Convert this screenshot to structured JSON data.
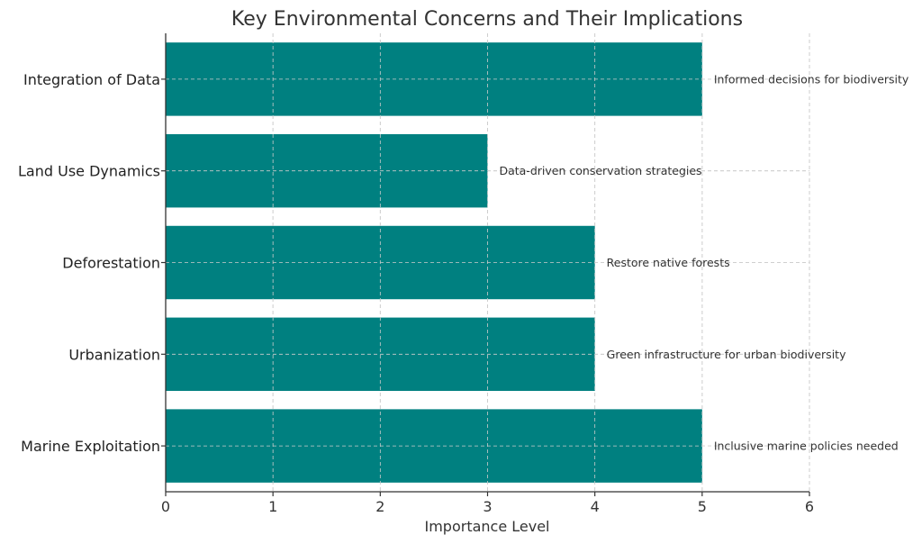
{
  "chart_data": {
    "type": "bar",
    "orientation": "horizontal",
    "title": "Key Environmental Concerns and Their Implications",
    "xlabel": "Importance Level",
    "ylabel": "",
    "xlim": [
      0,
      6
    ],
    "xticks": [
      "0",
      "1",
      "2",
      "3",
      "4",
      "5",
      "6"
    ],
    "grid": true,
    "bar_color": "#008080",
    "categories": [
      "Marine Exploitation",
      "Urbanization",
      "Deforestation",
      "Land Use Dynamics",
      "Integration of Data"
    ],
    "values": [
      5,
      4,
      4,
      3,
      5
    ],
    "annotations": [
      "Inclusive marine policies needed",
      "Green infrastructure for urban biodiversity",
      "Restore native forests",
      "Data-driven conservation strategies",
      "Informed decisions for biodiversity"
    ]
  }
}
